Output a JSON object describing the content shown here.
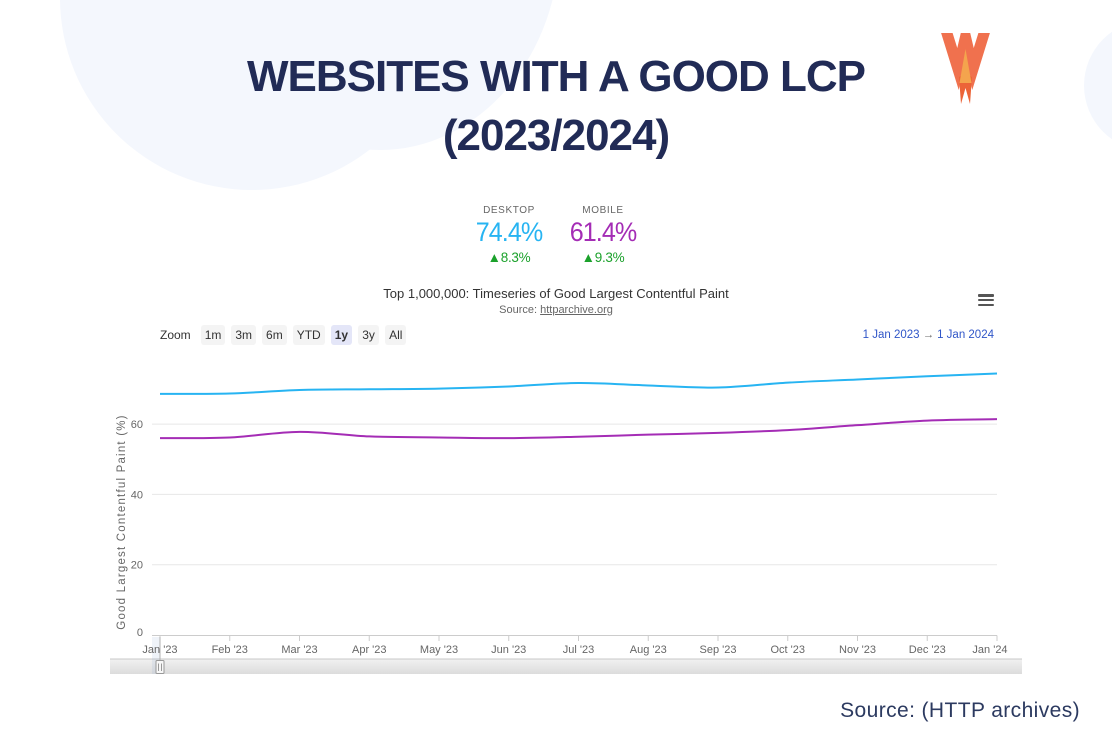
{
  "page": {
    "title_line1": "WEBSITES WITH A GOOD LCP",
    "title_line2": "(2023/2024)",
    "footer_source": "Source: (HTTP archives)",
    "brand": "WP Rocket",
    "colors": {
      "title": "#212b56",
      "desktop": "#27b4f2",
      "mobile": "#a42cb5",
      "delta_green": "#1ba12b",
      "blob": "#f4f7fd"
    }
  },
  "stats": {
    "desktop": {
      "label": "DESKTOP",
      "value": "74.4%",
      "delta": "▲8.3%"
    },
    "mobile": {
      "label": "MOBILE",
      "value": "61.4%",
      "delta": "▲9.3%"
    }
  },
  "chart": {
    "zoom_label": "Zoom",
    "zoom_buttons": [
      "1m",
      "3m",
      "6m",
      "YTD",
      "1y",
      "3y",
      "All"
    ],
    "zoom_selected": "1y",
    "range_from": "1 Jan 2023",
    "range_arrow": "→",
    "range_to": "1 Jan 2024",
    "title": "Top 1,000,000: Timeseries of Good Largest Contentful Paint",
    "source_prefix": "Source: ",
    "source_link": "httparchive.org"
  },
  "chart_data": {
    "type": "line",
    "title": "Top 1,000,000: Timeseries of Good Largest Contentful Paint",
    "source": "httparchive.org",
    "x": [
      "Jan '23",
      "Feb '23",
      "Mar '23",
      "Apr '23",
      "May '23",
      "Jun '23",
      "Jul '23",
      "Aug '23",
      "Sep '23",
      "Oct '23",
      "Nov '23",
      "Dec '23",
      "Jan '24"
    ],
    "series": [
      {
        "name": "Desktop",
        "color": "#27b4f2",
        "values": [
          68.6,
          68.7,
          69.7,
          69.9,
          70.1,
          70.7,
          71.7,
          71.0,
          70.4,
          71.8,
          72.7,
          73.6,
          74.4
        ]
      },
      {
        "name": "Mobile",
        "color": "#a42cb5",
        "values": [
          56.0,
          56.2,
          57.8,
          56.5,
          56.2,
          56.0,
          56.4,
          57.0,
          57.5,
          58.3,
          59.7,
          61.0,
          61.4
        ]
      }
    ],
    "ylabel": "Good Largest Contentful Paint (%)",
    "yticks": [
      0,
      20,
      40,
      60
    ],
    "ylim": [
      0,
      80
    ],
    "grid": true,
    "legend_position": "none"
  }
}
